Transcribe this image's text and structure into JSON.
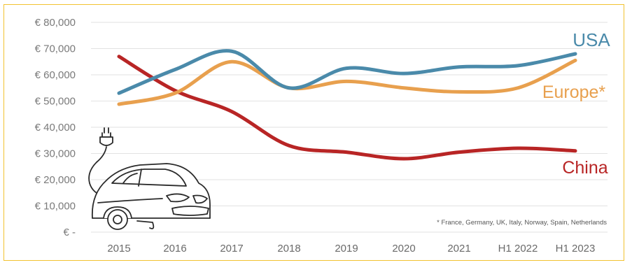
{
  "chart_data": {
    "type": "line",
    "title": "",
    "xlabel": "",
    "ylabel": "",
    "categories": [
      "2015",
      "2016",
      "2017",
      "2018",
      "2019",
      "2020",
      "2021",
      "H1 2022",
      "H1 2023"
    ],
    "y_tick_labels": [
      "€ -",
      "€ 10,000",
      "€ 20,000",
      "€ 30,000",
      "€ 40,000",
      "€ 50,000",
      "€ 60,000",
      "€ 70,000",
      "€ 80,000"
    ],
    "ylim": [
      0,
      80000
    ],
    "grid": true,
    "legend": "inline labels at line ends",
    "series": [
      {
        "name": "USA",
        "color": "#4a8aaa",
        "values": [
          53000,
          62000,
          69000,
          55000,
          62500,
          60500,
          63000,
          63500,
          68000
        ]
      },
      {
        "name": "Europe*",
        "color": "#e8a04e",
        "values": [
          48800,
          53000,
          65000,
          55000,
          57500,
          55000,
          53500,
          55000,
          65500
        ]
      },
      {
        "name": "China",
        "color": "#b82525",
        "values": [
          67000,
          54000,
          46000,
          33000,
          30500,
          28000,
          30500,
          32000,
          31000
        ]
      }
    ],
    "footnote": "* France, Germany, UK, Italy, Norway, Spain, Netherlands",
    "illustration": "electric-car-with-plug"
  }
}
